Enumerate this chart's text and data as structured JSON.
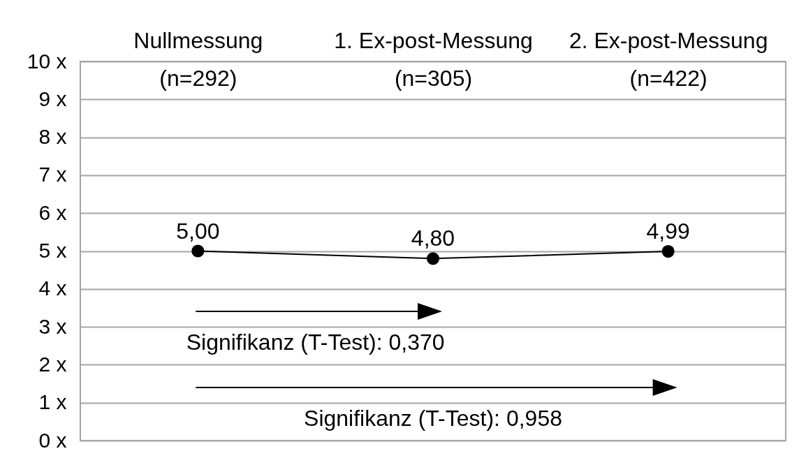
{
  "chart_data": {
    "type": "line",
    "categories": [
      "Nullmessung\n(n=292)",
      "1. Ex-post-Messung\n(n=305)",
      "2. Ex-post-Messung\n(n=422)"
    ],
    "values": [
      5.0,
      4.8,
      4.99
    ],
    "color": "#000000",
    "value_labels": [
      "5,00",
      "4,80",
      "4,99"
    ],
    "ylim": [
      0,
      10
    ],
    "yticks": [
      {
        "value": 0,
        "label": "0 x"
      },
      {
        "value": 1,
        "label": "1 x"
      },
      {
        "value": 2,
        "label": "2 x"
      },
      {
        "value": 3,
        "label": "3 x"
      },
      {
        "value": 4,
        "label": "4 x"
      },
      {
        "value": 5,
        "label": "5 x"
      },
      {
        "value": 6,
        "label": "6 x"
      },
      {
        "value": 7,
        "label": "7 x"
      },
      {
        "value": 8,
        "label": "8 x"
      },
      {
        "value": 9,
        "label": "9 x"
      },
      {
        "value": 10,
        "label": "10 x"
      }
    ],
    "grid": "y",
    "marker": "circle",
    "line_style": "solid",
    "annotations": [
      "Signifikanz (T-Test): 0,370",
      "Signifikanz (T-Test): 0,958"
    ]
  }
}
